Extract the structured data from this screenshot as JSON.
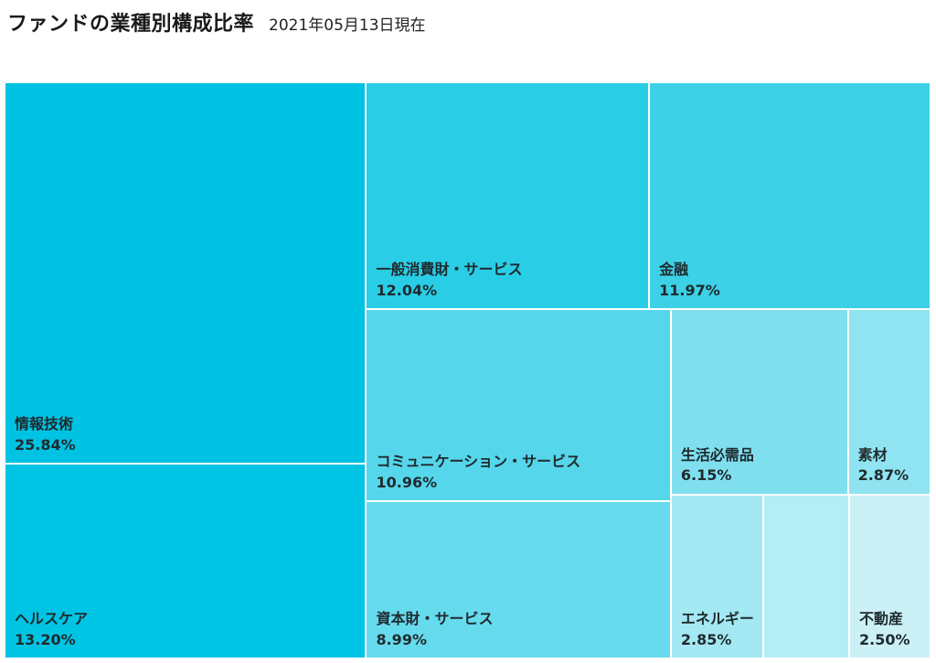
{
  "header": {
    "title": "ファンドの業種別構成比率",
    "subtitle": "2021年05月13日現在"
  },
  "chart_data": {
    "type": "treemap",
    "unit": "%",
    "items": [
      {
        "name": "情報技術",
        "value": 25.84,
        "label": "25.84%",
        "color": "#00c2e2"
      },
      {
        "name": "ヘルスケア",
        "value": 13.2,
        "label": "13.20%",
        "color": "#00c4e4"
      },
      {
        "name": "一般消費財・サービス",
        "value": 12.04,
        "label": "12.04%",
        "color": "#29cde6"
      },
      {
        "name": "金融",
        "value": 11.97,
        "label": "11.97%",
        "color": "#3dd1e7"
      },
      {
        "name": "コミュニケーション・サービス",
        "value": 10.96,
        "label": "10.96%",
        "color": "#55d6ea"
      },
      {
        "name": "資本財・サービス",
        "value": 8.99,
        "label": "8.99%",
        "color": "#66dbed"
      },
      {
        "name": "生活必需品",
        "value": 6.15,
        "label": "6.15%",
        "color": "#7fdfee"
      },
      {
        "name": "素材",
        "value": 2.87,
        "label": "2.87%",
        "color": "#90e4f1"
      },
      {
        "name": "エネルギー",
        "value": 2.85,
        "label": "2.85%",
        "color": "#a3e8f3"
      },
      {
        "name": "",
        "value": 2.63,
        "label": "",
        "color": "#b5edf5"
      },
      {
        "name": "不動産",
        "value": 2.5,
        "label": "2.50%",
        "color": "#cbf1f7"
      }
    ]
  }
}
